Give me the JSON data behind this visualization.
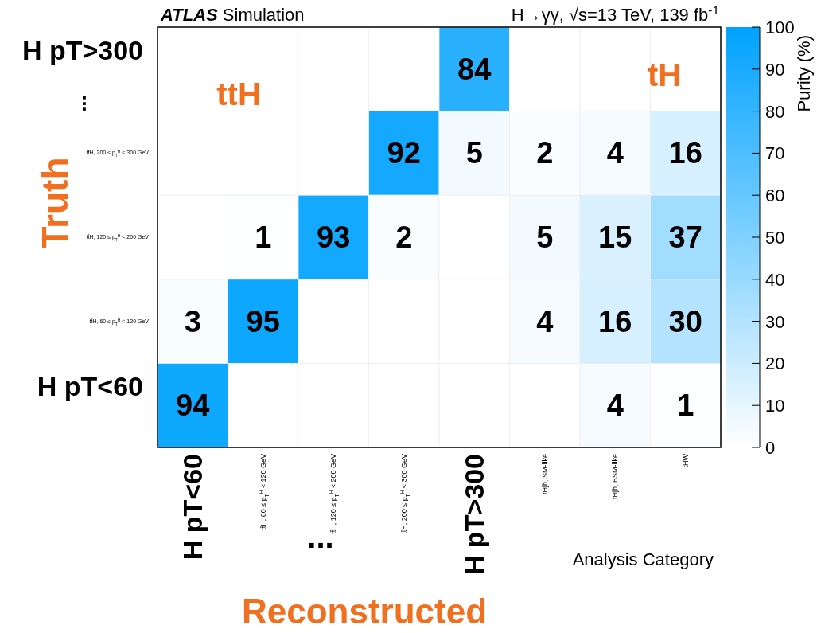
{
  "chart_data": {
    "type": "heatmap",
    "title": "ATLAS Simulation",
    "subtitle": "H→γγ, √s=13 TeV, 139 fb$^{-1}$",
    "xlabel": "Analysis Category",
    "clabel": "Purity (%)",
    "color": "#00a2ff",
    "categories": [
      "H pT<60",
      "tt̄H, 60 ≤ p$_{T}$$^{H}$ < 120 GeV",
      "tt̄H, 120 ≤ p$_{T}$$^{H}$ < 200 GeV",
      "tt̄H, 200 ≤ p$_{T}$$^{H}$ < 300 GeV",
      "H pT>300",
      "tHjb, SM-like",
      "tHjb, BSM-like",
      "tHW"
    ],
    "y_categories": [
      "H pT>300",
      "tt̄H, 200 ≤ p$_{T}$$^{H}$ < 300 GeV",
      "tt̄H, 120 ≤ p$_{T}$$^{H}$ < 200 GeV",
      "tt̄H, 60 ≤ p$_{T}$$^{H}$ < 120 GeV",
      "H pT<60"
    ],
    "cells": [
      [
        null,
        null,
        null,
        null,
        84,
        null,
        null,
        null
      ],
      [
        null,
        null,
        null,
        92,
        5,
        2,
        4,
        16
      ],
      [
        null,
        1,
        93,
        2,
        null,
        5,
        15,
        37
      ],
      [
        3,
        95,
        null,
        null,
        null,
        4,
        16,
        30
      ],
      [
        94,
        null,
        null,
        null,
        null,
        null,
        4,
        1
      ]
    ],
    "data_labels": true,
    "clim": [
      0,
      100
    ],
    "cticks": [
      0,
      10,
      20,
      30,
      40,
      50,
      60,
      70,
      80,
      90,
      100
    ],
    "annotations": [
      "ttH",
      "tH",
      "Truth",
      "Reconstructed",
      "...",
      "..."
    ]
  }
}
